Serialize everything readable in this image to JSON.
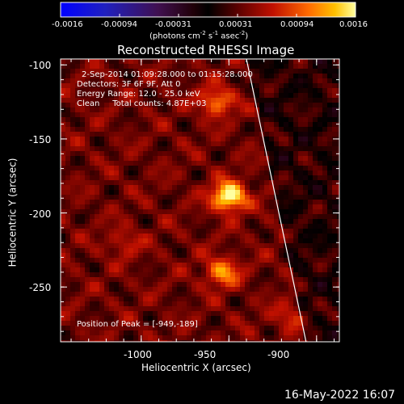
{
  "colorbar": {
    "ticks": [
      "-0.0016",
      "-0.00094",
      "-0.00031",
      "0.00031",
      "0.00094",
      "0.0016"
    ],
    "unit_label": "(photons cm",
    "unit_exp1": "-2",
    "unit_mid": " s",
    "unit_exp2": "-1",
    "unit_tail": " asec",
    "unit_exp3": "-2",
    "unit_close": ")"
  },
  "title": "Reconstructed RHESSI Image",
  "annotations": {
    "time": "2-Sep-2014 01:09:28.000 to 01:15:28.000",
    "detectors": "Detectors: 3F 6F 9F, Att 0",
    "energy": "Energy Range: 12.0 - 25.0 keV",
    "clean": "Clean     Total counts: 4.87E+03",
    "peak": "Position of Peak = [-949,-189]"
  },
  "footer": {
    "timestamp": "16-May-2022 16:07"
  },
  "chart_data": {
    "type": "heatmap",
    "title": "Reconstructed RHESSI Image",
    "xlabel": "Heliocentric X (arcsec)",
    "ylabel": "Heliocentric Y (arcsec)",
    "xlim": [
      -1046,
      -887
    ],
    "ylim": [
      -287,
      -96
    ],
    "x_ticks": [
      -1000,
      -950,
      -900
    ],
    "x_tick_labels": [
      "-1000",
      "-950",
      "-900"
    ],
    "y_ticks": [
      -100,
      -150,
      -200,
      -250
    ],
    "y_tick_labels": [
      "-100",
      "-150",
      "-200",
      "-250"
    ],
    "colorscale_range": [
      -0.0016,
      0.0016
    ],
    "peak_position": [
      -949,
      -189
    ],
    "sources": [
      {
        "x": -950,
        "y": -189,
        "strength": 1.0
      },
      {
        "x": -957,
        "y": -125,
        "strength": 0.55
      },
      {
        "x": -954,
        "y": -240,
        "strength": 0.6
      },
      {
        "x": -915,
        "y": -270,
        "strength": 0.3
      },
      {
        "x": -1010,
        "y": -220,
        "strength": 0.25
      }
    ],
    "limb_line": [
      [
        -940,
        -96
      ],
      [
        -906,
        -287
      ]
    ]
  }
}
